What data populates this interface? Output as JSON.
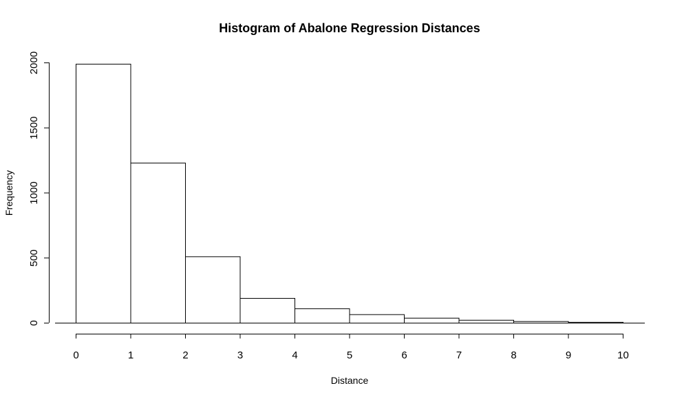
{
  "chart_data": {
    "type": "bar",
    "title": "Histogram of Abalone Regression Distances",
    "xlabel": "Distance",
    "ylabel": "Frequency",
    "bins": [
      {
        "start": 0,
        "end": 1,
        "value": 1990
      },
      {
        "start": 1,
        "end": 2,
        "value": 1230
      },
      {
        "start": 2,
        "end": 3,
        "value": 510
      },
      {
        "start": 3,
        "end": 4,
        "value": 190
      },
      {
        "start": 4,
        "end": 5,
        "value": 110
      },
      {
        "start": 5,
        "end": 6,
        "value": 65
      },
      {
        "start": 6,
        "end": 7,
        "value": 38
      },
      {
        "start": 7,
        "end": 8,
        "value": 22
      },
      {
        "start": 8,
        "end": 9,
        "value": 12
      },
      {
        "start": 9,
        "end": 10,
        "value": 6
      }
    ],
    "xlim": [
      0,
      10
    ],
    "ylim": [
      0,
      2000
    ],
    "xticks": [
      "0",
      "1",
      "2",
      "3",
      "4",
      "5",
      "6",
      "7",
      "8",
      "9",
      "10"
    ],
    "yticks": [
      "0",
      "500",
      "1000",
      "1500",
      "2000"
    ],
    "grid": false,
    "bar_fill": "#ffffff",
    "bar_stroke": "#000000"
  }
}
